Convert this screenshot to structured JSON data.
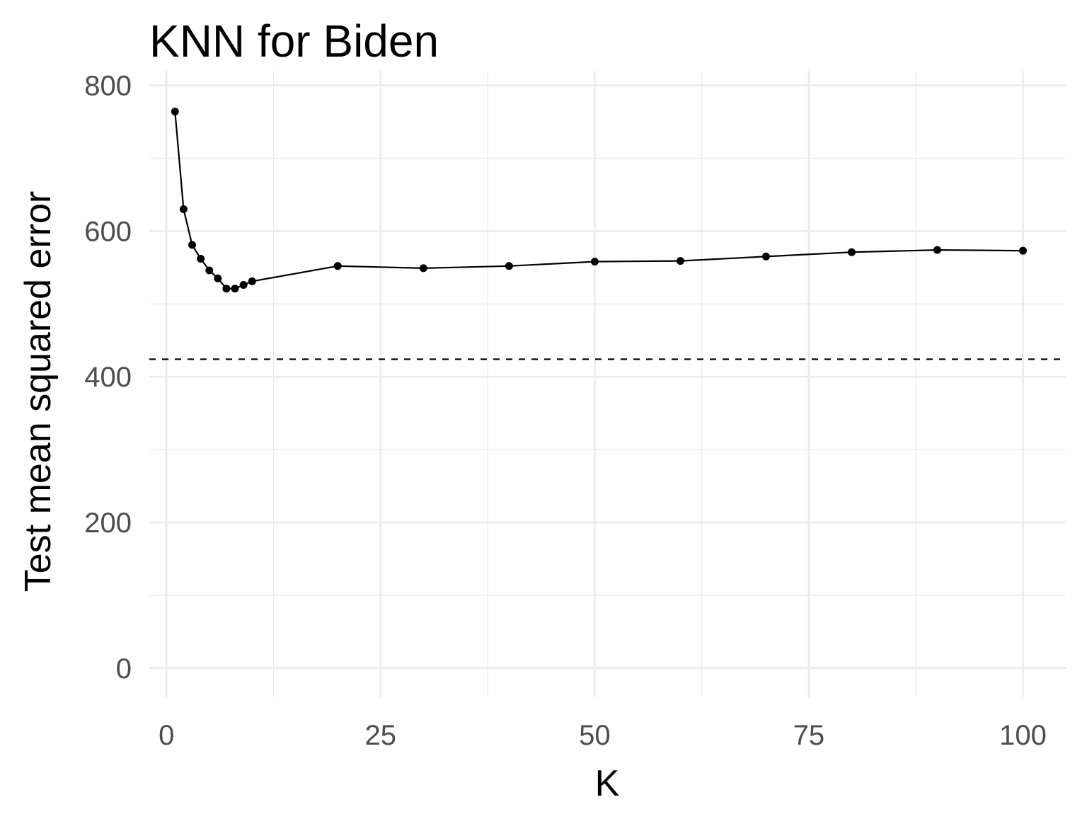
{
  "chart_data": {
    "type": "line",
    "title": "KNN for Biden",
    "xlabel": "K",
    "ylabel": "Test mean squared error",
    "xlim": [
      -2,
      105
    ],
    "ylim": [
      -40,
      820
    ],
    "x_ticks": [
      0,
      25,
      50,
      75,
      100
    ],
    "x_minor_ticks": [
      12.5,
      37.5,
      62.5,
      87.5
    ],
    "y_ticks": [
      0,
      200,
      400,
      600,
      800
    ],
    "y_minor_ticks": [
      100,
      300,
      500,
      700
    ],
    "grid": true,
    "legend": "none",
    "colors": {
      "line": "#000000",
      "grid": "#ebebeb",
      "tick_text": "#4d4d4d"
    },
    "series": [
      {
        "x": [
          1,
          2,
          3,
          4,
          5,
          6,
          7,
          8,
          9,
          10,
          20,
          30,
          40,
          50,
          60,
          70,
          80,
          90,
          100
        ],
        "values": [
          764,
          630,
          581,
          562,
          546,
          535,
          521,
          521,
          526,
          531,
          552,
          549,
          552,
          558,
          559,
          565,
          571,
          574,
          573
        ]
      }
    ],
    "reference_line": {
      "orientation": "horizontal",
      "style": "dashed",
      "value": 424
    }
  }
}
